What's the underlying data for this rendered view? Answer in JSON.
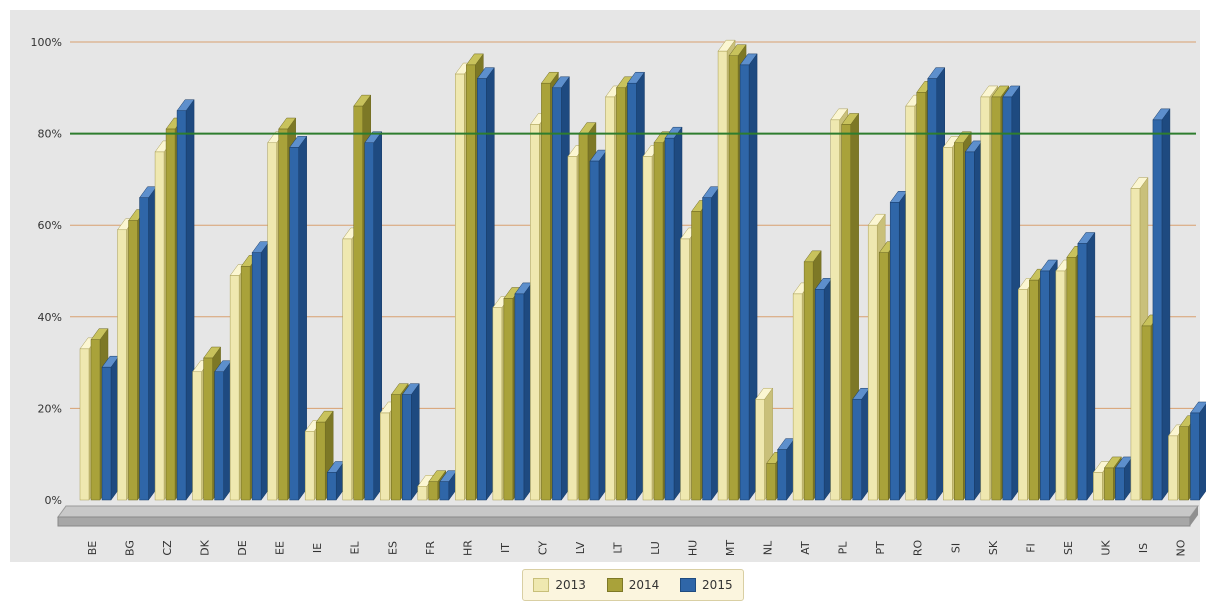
{
  "chart_data": {
    "type": "bar",
    "categories": [
      "BE",
      "BG",
      "CZ",
      "DK",
      "DE",
      "EE",
      "IE",
      "EL",
      "ES",
      "FR",
      "HR",
      "IT",
      "CY",
      "LV",
      "LT",
      "LU",
      "HU",
      "MT",
      "NL",
      "AT",
      "PL",
      "PT",
      "RO",
      "SI",
      "SK",
      "FI",
      "SE",
      "UK",
      "IS",
      "NO"
    ],
    "series": [
      {
        "name": "2013",
        "values": [
          33,
          59,
          76,
          28,
          49,
          78,
          15,
          57,
          19,
          3,
          93,
          42,
          82,
          75,
          88,
          75,
          57,
          98,
          22,
          45,
          83,
          60,
          86,
          77,
          88,
          46,
          50,
          6,
          68,
          14
        ]
      },
      {
        "name": "2014",
        "values": [
          35,
          61,
          81,
          31,
          51,
          81,
          17,
          86,
          23,
          4,
          95,
          44,
          91,
          80,
          90,
          78,
          63,
          97,
          8,
          52,
          82,
          54,
          89,
          78,
          88,
          48,
          53,
          7,
          38,
          16
        ]
      },
      {
        "name": "2015",
        "values": [
          29,
          66,
          85,
          28,
          54,
          77,
          6,
          78,
          23,
          4,
          92,
          45,
          90,
          74,
          91,
          79,
          66,
          95,
          11,
          46,
          22,
          65,
          92,
          76,
          88,
          50,
          56,
          7,
          83,
          19
        ]
      }
    ],
    "colors": {
      "2013": "#efe8b0",
      "2014": "#a9a23a",
      "2015": "#2f66a8"
    },
    "yticks": [
      "0%",
      "20%",
      "40%",
      "60%",
      "80%",
      "100%"
    ],
    "ylim": [
      0,
      100
    ],
    "reference_line": {
      "value": 80,
      "color": "#2e7d2e"
    },
    "legend_position": "bottom-center",
    "grid": true
  }
}
